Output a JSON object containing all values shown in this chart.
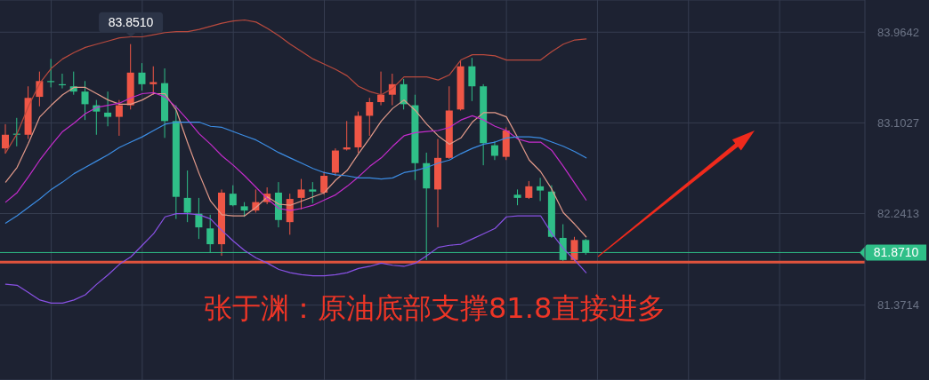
{
  "chart_data": {
    "type": "candlestick",
    "categories": [
      null,
      null,
      null,
      null,
      null,
      null,
      null,
      null,
      null,
      null,
      null,
      null,
      null,
      null,
      null,
      null,
      null,
      null,
      null,
      null,
      null,
      null,
      null,
      null,
      null,
      null,
      null,
      null,
      null,
      null,
      null,
      null,
      null,
      null,
      null,
      null,
      null,
      null,
      null,
      null,
      null,
      null,
      null,
      null,
      null,
      null,
      null,
      null,
      null,
      null,
      null,
      null,
      null,
      null,
      null,
      null,
      null,
      null,
      null,
      null,
      null,
      null,
      null,
      null,
      null,
      null,
      null,
      null,
      null,
      null,
      null,
      null,
      null,
      null,
      null,
      null
    ],
    "ohlc": [
      [
        82.86,
        83.09,
        82.81,
        82.99
      ],
      [
        83.0,
        83.15,
        82.88,
        82.99
      ],
      [
        82.99,
        83.45,
        82.95,
        83.34
      ],
      [
        83.35,
        83.59,
        83.26,
        83.5
      ],
      [
        83.5,
        83.71,
        83.44,
        83.49
      ],
      [
        83.47,
        83.57,
        83.43,
        83.46
      ],
      [
        83.45,
        83.59,
        83.37,
        83.4
      ],
      [
        83.4,
        83.5,
        83.13,
        83.28
      ],
      [
        83.27,
        83.32,
        82.99,
        83.21
      ],
      [
        83.2,
        83.4,
        83.07,
        83.16
      ],
      [
        83.16,
        83.32,
        82.98,
        83.27
      ],
      [
        83.27,
        83.851,
        83.23,
        83.58
      ],
      [
        83.58,
        83.67,
        83.41,
        83.47
      ],
      [
        83.47,
        83.64,
        83.37,
        83.49
      ],
      [
        83.48,
        83.62,
        82.96,
        83.12
      ],
      [
        83.12,
        83.27,
        82.19,
        82.4
      ],
      [
        82.39,
        82.65,
        82.16,
        82.25
      ],
      [
        82.24,
        82.39,
        82.0,
        82.11
      ],
      [
        82.1,
        82.23,
        81.87,
        81.95
      ],
      [
        81.95,
        82.47,
        81.84,
        82.44
      ],
      [
        82.43,
        82.51,
        82.31,
        82.32
      ],
      [
        82.31,
        82.35,
        82.21,
        82.27
      ],
      [
        82.27,
        82.47,
        82.25,
        82.35
      ],
      [
        82.35,
        82.49,
        82.33,
        82.43
      ],
      [
        82.44,
        82.54,
        82.11,
        82.18
      ],
      [
        82.16,
        82.43,
        82.04,
        82.38
      ],
      [
        82.39,
        82.57,
        82.28,
        82.47
      ],
      [
        82.47,
        82.54,
        82.34,
        82.45
      ],
      [
        82.44,
        82.64,
        82.42,
        82.6
      ],
      [
        82.63,
        82.86,
        82.6,
        82.84
      ],
      [
        82.85,
        83.12,
        82.84,
        82.87
      ],
      [
        82.87,
        83.21,
        82.82,
        83.17
      ],
      [
        83.17,
        83.34,
        82.98,
        83.3
      ],
      [
        83.3,
        83.59,
        83.27,
        83.37
      ],
      [
        83.37,
        83.57,
        83.27,
        83.47
      ],
      [
        83.47,
        83.52,
        83.23,
        83.28
      ],
      [
        83.27,
        83.37,
        82.56,
        82.72
      ],
      [
        82.72,
        82.82,
        81.8,
        82.48
      ],
      [
        82.47,
        82.95,
        82.11,
        82.77
      ],
      [
        82.77,
        83.45,
        82.76,
        83.22
      ],
      [
        83.23,
        83.69,
        83.22,
        83.64
      ],
      [
        83.64,
        83.72,
        83.31,
        83.45
      ],
      [
        83.45,
        83.47,
        82.7,
        82.91
      ],
      [
        82.89,
        82.93,
        82.75,
        82.79
      ],
      [
        82.78,
        83.06,
        82.75,
        83.03
      ],
      [
        82.42,
        82.47,
        82.32,
        82.39
      ],
      [
        82.39,
        82.55,
        82.38,
        82.5
      ],
      [
        82.5,
        82.58,
        82.36,
        82.46
      ],
      [
        82.45,
        82.51,
        82.01,
        82.02
      ],
      [
        82.01,
        82.14,
        81.79,
        81.8
      ],
      [
        81.8,
        82.02,
        81.79,
        81.99
      ],
      [
        81.99,
        82.0,
        81.85,
        81.871
      ],
      null,
      null,
      null,
      null,
      null,
      null,
      null,
      null,
      null,
      null,
      null,
      null,
      null,
      null,
      null,
      null,
      null,
      null,
      null,
      null,
      null,
      null,
      null,
      null
    ],
    "colors": [
      "#ef5646",
      "#2fbf88",
      "#ef5646",
      "#ef5646",
      "#2fbf88",
      "#2fbf88",
      "#2fbf88",
      "#2fbf88",
      "#2fbf88",
      "#2fbf88",
      "#ef5646",
      "#ef5646",
      "#2fbf88",
      "#ef5646",
      "#2fbf88",
      "#2fbf88",
      "#2fbf88",
      "#2fbf88",
      "#2fbf88",
      "#ef5646",
      "#2fbf88",
      "#2fbf88",
      "#ef5646",
      "#ef5646",
      "#2fbf88",
      "#ef5646",
      "#ef5646",
      "#2fbf88",
      "#ef5646",
      "#ef5646",
      "#ef5646",
      "#ef5646",
      "#ef5646",
      "#ef5646",
      "#ef5646",
      "#2fbf88",
      "#2fbf88",
      "#2fbf88",
      "#ef5646",
      "#ef5646",
      "#ef5646",
      "#2fbf88",
      "#2fbf88",
      "#2fbf88",
      "#ef5646",
      "#2fbf88",
      "#ef5646",
      "#2fbf88",
      "#2fbf88",
      "#2fbf88",
      "#ef5646",
      "#2fbf88",
      null,
      null,
      null,
      null,
      null,
      null,
      null,
      null,
      null,
      null,
      null,
      null,
      null,
      null,
      null,
      null,
      null,
      null,
      null,
      null,
      null,
      null,
      null,
      null
    ],
    "series": [
      {
        "type": "line",
        "color": "#b94a3e",
        "values": [
          82.82,
          83.0,
          83.26,
          83.48,
          83.62,
          83.71,
          83.77,
          83.82,
          83.85,
          83.88,
          83.91,
          83.92,
          83.92,
          83.94,
          83.96,
          83.97,
          83.97,
          83.99,
          84.02,
          84.05,
          84.07,
          84.08,
          84.06,
          84.0,
          83.93,
          83.85,
          83.78,
          83.71,
          83.66,
          83.61,
          83.55,
          83.45,
          83.4,
          83.37,
          83.43,
          83.54,
          83.54,
          83.54,
          83.51,
          83.56,
          83.7,
          83.75,
          83.75,
          83.74,
          83.7,
          83.7,
          83.7,
          83.7,
          83.78,
          83.85,
          83.89,
          83.9,
          null,
          null,
          null,
          null,
          null,
          null,
          null,
          null,
          null,
          null,
          null,
          null,
          null,
          null,
          null,
          null,
          null,
          null,
          null,
          null,
          null,
          null,
          null,
          null
        ]
      },
      {
        "type": "line",
        "color": "#e39a8a",
        "values": [
          82.54,
          82.68,
          82.91,
          83.16,
          83.27,
          83.37,
          83.44,
          83.44,
          83.38,
          83.32,
          83.28,
          83.28,
          83.32,
          83.38,
          83.38,
          83.22,
          82.91,
          82.62,
          82.36,
          82.23,
          82.22,
          82.22,
          82.3,
          82.4,
          82.33,
          82.32,
          82.36,
          82.4,
          82.44,
          82.56,
          82.65,
          82.81,
          82.96,
          83.12,
          83.24,
          83.32,
          83.22,
          83.09,
          82.98,
          82.9,
          82.96,
          83.11,
          83.2,
          83.2,
          83.16,
          82.96,
          82.75,
          82.64,
          82.47,
          82.25,
          82.14,
          82.02,
          null,
          null,
          null,
          null,
          null,
          null,
          null,
          null,
          null,
          null,
          null,
          null,
          null,
          null,
          null,
          null,
          null,
          null,
          null,
          null,
          null,
          null,
          null,
          null
        ]
      },
      {
        "type": "line",
        "color": "#c42ccc",
        "values": [
          82.35,
          82.44,
          82.59,
          82.75,
          82.89,
          83.02,
          83.1,
          83.19,
          83.25,
          83.27,
          83.29,
          83.34,
          83.38,
          83.39,
          83.35,
          83.25,
          83.13,
          83.0,
          82.9,
          82.79,
          82.7,
          82.6,
          82.49,
          82.38,
          82.29,
          82.27,
          82.29,
          82.32,
          82.37,
          82.42,
          82.5,
          82.59,
          82.69,
          82.77,
          82.88,
          82.98,
          83.01,
          83.02,
          83.03,
          83.06,
          83.13,
          83.17,
          83.13,
          83.07,
          83.03,
          82.95,
          82.92,
          82.92,
          82.84,
          82.69,
          82.53,
          82.37,
          null,
          null,
          null,
          null,
          null,
          null,
          null,
          null,
          null,
          null,
          null,
          null,
          null,
          null,
          null,
          null,
          null,
          null,
          null,
          null,
          null,
          null,
          null,
          null
        ]
      },
      {
        "type": "line",
        "color": "#3c8de4",
        "values": [
          82.15,
          82.22,
          82.3,
          82.38,
          82.47,
          82.54,
          82.62,
          82.68,
          82.74,
          82.8,
          82.87,
          82.92,
          82.97,
          83.03,
          83.09,
          83.11,
          83.11,
          83.11,
          83.07,
          83.06,
          83.02,
          82.98,
          82.94,
          82.88,
          82.82,
          82.77,
          82.72,
          82.67,
          82.63,
          82.61,
          82.6,
          82.58,
          82.58,
          82.57,
          82.58,
          82.63,
          82.65,
          82.68,
          82.72,
          82.75,
          82.81,
          82.86,
          82.9,
          82.92,
          82.96,
          82.97,
          82.97,
          82.96,
          82.92,
          82.88,
          82.83,
          82.77,
          null,
          null,
          null,
          null,
          null,
          null,
          null,
          null,
          null,
          null,
          null,
          null,
          null,
          null,
          null,
          null,
          null,
          null,
          null,
          null,
          null,
          null,
          null,
          null
        ]
      },
      {
        "type": "line",
        "color": "#8a52e6",
        "values": [
          81.57,
          81.56,
          81.49,
          81.42,
          81.39,
          81.39,
          81.42,
          81.47,
          81.57,
          81.66,
          81.76,
          81.83,
          81.94,
          82.05,
          82.21,
          82.24,
          82.24,
          82.23,
          82.19,
          82.08,
          81.98,
          81.89,
          81.82,
          81.77,
          81.71,
          81.68,
          81.66,
          81.65,
          81.65,
          81.66,
          81.68,
          81.72,
          81.74,
          81.77,
          81.75,
          81.74,
          81.77,
          81.84,
          81.92,
          81.94,
          81.95,
          82.0,
          82.05,
          82.1,
          82.21,
          82.22,
          82.22,
          82.22,
          82.05,
          81.91,
          81.8,
          81.68,
          null,
          null,
          null,
          null,
          null,
          null,
          null,
          null,
          null,
          null,
          null,
          null,
          null,
          null,
          null,
          null,
          null,
          null,
          null,
          null,
          null,
          null,
          null,
          null
        ]
      }
    ],
    "ylim": [
      80.66,
      84.27
    ],
    "yticks": [
      81.3714,
      82.2413,
      83.1027,
      83.9642
    ],
    "grid": true,
    "tick_labels": "y",
    "ref_lines": [
      {
        "axis": "y",
        "value": 81.871,
        "label": "81.8710",
        "color": "#2fbf88"
      },
      {
        "axis": "y",
        "value": 81.78,
        "color": "#e0533d"
      }
    ],
    "annotations": [
      {
        "text": "83.8510",
        "y": 83.851
      },
      "张于渊：原油底部支撑81.8直接进多"
    ]
  }
}
